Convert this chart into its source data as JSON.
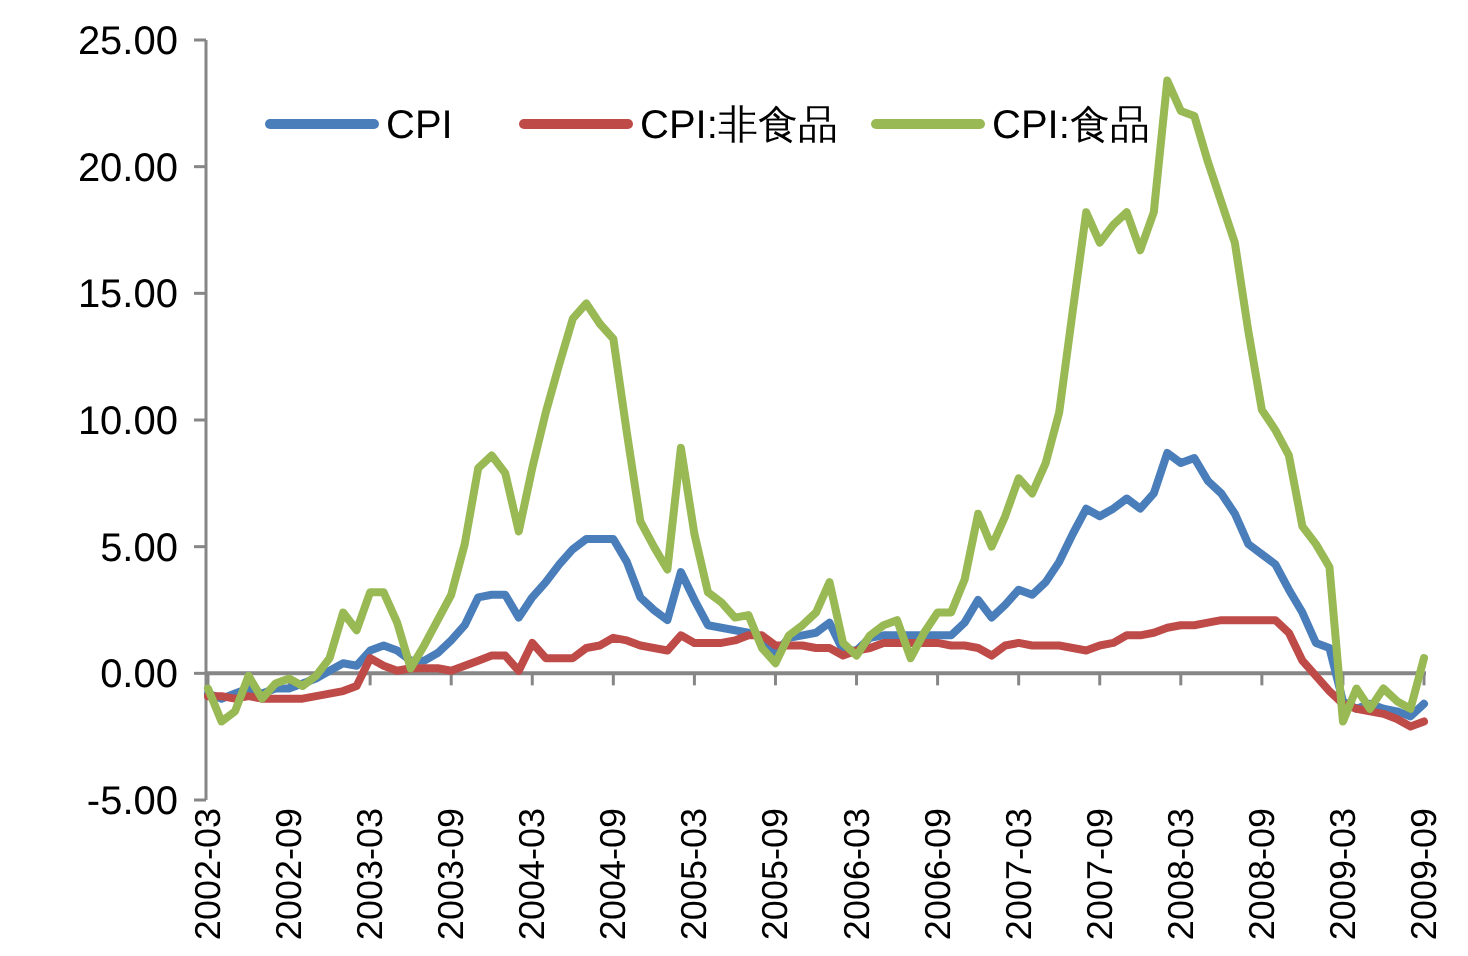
{
  "chart_data": {
    "type": "line",
    "categories": [
      "2002-03",
      null,
      null,
      null,
      null,
      null,
      "2002-09",
      null,
      null,
      null,
      null,
      null,
      "2003-03",
      null,
      null,
      null,
      null,
      null,
      "2003-09",
      null,
      null,
      null,
      null,
      null,
      "2004-03",
      null,
      null,
      null,
      null,
      null,
      "2004-09",
      null,
      null,
      null,
      null,
      null,
      "2005-03",
      null,
      null,
      null,
      null,
      null,
      "2005-09",
      null,
      null,
      null,
      null,
      null,
      "2006-03",
      null,
      null,
      null,
      null,
      null,
      "2006-09",
      null,
      null,
      null,
      null,
      null,
      "2007-03",
      null,
      null,
      null,
      null,
      null,
      "2007-09",
      null,
      null,
      null,
      null,
      null,
      "2008-03",
      null,
      null,
      null,
      null,
      null,
      "2008-09",
      null,
      null,
      null,
      null,
      null,
      "2009-03",
      null,
      null,
      null,
      null,
      null,
      "2009-09"
    ],
    "series": [
      {
        "name": "CPI",
        "color": "#4a7ebb",
        "values": [
          -0.8,
          -1.0,
          -0.8,
          -0.6,
          -0.8,
          -0.6,
          -0.6,
          -0.4,
          -0.2,
          0.1,
          0.4,
          0.3,
          0.9,
          1.1,
          0.9,
          0.5,
          0.5,
          0.8,
          1.3,
          1.9,
          3.0,
          3.1,
          3.1,
          2.2,
          3.0,
          3.6,
          4.3,
          4.9,
          5.3,
          5.3,
          5.3,
          4.4,
          3.0,
          2.5,
          2.1,
          4.0,
          2.9,
          1.9,
          1.8,
          1.7,
          1.6,
          1.4,
          0.8,
          1.4,
          1.5,
          1.6,
          2.0,
          0.9,
          0.9,
          1.4,
          1.5,
          1.5,
          1.5,
          1.5,
          1.5,
          1.5,
          2.0,
          2.9,
          2.2,
          2.7,
          3.3,
          3.1,
          3.6,
          4.4,
          5.5,
          6.5,
          6.2,
          6.5,
          6.9,
          6.5,
          7.1,
          8.7,
          8.3,
          8.5,
          7.6,
          7.1,
          6.3,
          5.1,
          4.7,
          4.3,
          3.3,
          2.4,
          1.2,
          1.0,
          -1.1,
          -1.4,
          -1.2,
          -1.4,
          -1.5,
          -1.7,
          -1.2
        ]
      },
      {
        "name": "CPI:非食品",
        "color": "#be4b48",
        "values": [
          -0.9,
          -0.9,
          -1.0,
          -0.9,
          -1.0,
          -1.0,
          -1.0,
          -1.0,
          -0.9,
          -0.8,
          -0.7,
          -0.5,
          0.6,
          0.3,
          0.1,
          0.2,
          0.2,
          0.2,
          0.1,
          0.3,
          0.5,
          0.7,
          0.7,
          0.1,
          1.2,
          0.6,
          0.6,
          0.6,
          1.0,
          1.1,
          1.4,
          1.3,
          1.1,
          1.0,
          0.9,
          1.5,
          1.2,
          1.2,
          1.2,
          1.3,
          1.5,
          1.5,
          1.1,
          1.1,
          1.1,
          1.0,
          1.0,
          0.7,
          0.9,
          1.0,
          1.2,
          1.2,
          1.2,
          1.2,
          1.2,
          1.1,
          1.1,
          1.0,
          0.7,
          1.1,
          1.2,
          1.1,
          1.1,
          1.1,
          1.0,
          0.9,
          1.1,
          1.2,
          1.5,
          1.5,
          1.6,
          1.8,
          1.9,
          1.9,
          2.0,
          2.1,
          2.1,
          2.1,
          2.1,
          2.1,
          1.6,
          0.5,
          -0.1,
          -0.7,
          -1.2,
          -1.4,
          -1.5,
          -1.6,
          -1.8,
          -2.1,
          -1.9
        ]
      },
      {
        "name": "CPI:食品",
        "color": "#98b954",
        "values": [
          -0.6,
          -1.9,
          -1.5,
          -0.1,
          -1.0,
          -0.4,
          -0.2,
          -0.5,
          -0.1,
          0.6,
          2.4,
          1.7,
          3.2,
          3.2,
          2.0,
          0.2,
          1.1,
          2.1,
          3.1,
          5.1,
          8.1,
          8.6,
          7.9,
          5.6,
          8.1,
          10.3,
          12.2,
          14.0,
          14.6,
          13.8,
          13.2,
          9.5,
          6.0,
          5.0,
          4.1,
          8.9,
          5.5,
          3.2,
          2.8,
          2.2,
          2.3,
          1.0,
          0.4,
          1.5,
          1.9,
          2.4,
          3.6,
          1.2,
          0.7,
          1.5,
          1.9,
          2.1,
          0.6,
          1.6,
          2.4,
          2.4,
          3.7,
          6.3,
          5.0,
          6.2,
          7.7,
          7.1,
          8.3,
          10.3,
          14.3,
          18.2,
          17.0,
          17.7,
          18.2,
          16.7,
          18.2,
          23.4,
          22.2,
          22.0,
          20.2,
          18.6,
          17.0,
          13.5,
          10.4,
          9.6,
          8.6,
          5.8,
          5.1,
          4.2,
          -1.9,
          -0.6,
          -1.4,
          -0.6,
          -1.1,
          -1.4,
          0.6
        ]
      }
    ],
    "ylim": [
      -5,
      25
    ],
    "yticks": [
      {
        "value": -5,
        "label": "-5.00"
      },
      {
        "value": 0,
        "label": "0.00"
      },
      {
        "value": 5,
        "label": "5.00"
      },
      {
        "value": 10,
        "label": "10.00"
      },
      {
        "value": 15,
        "label": "15.00"
      },
      {
        "value": 20,
        "label": "20.00"
      },
      {
        "value": 25,
        "label": "25.00"
      }
    ],
    "legend": "top"
  }
}
